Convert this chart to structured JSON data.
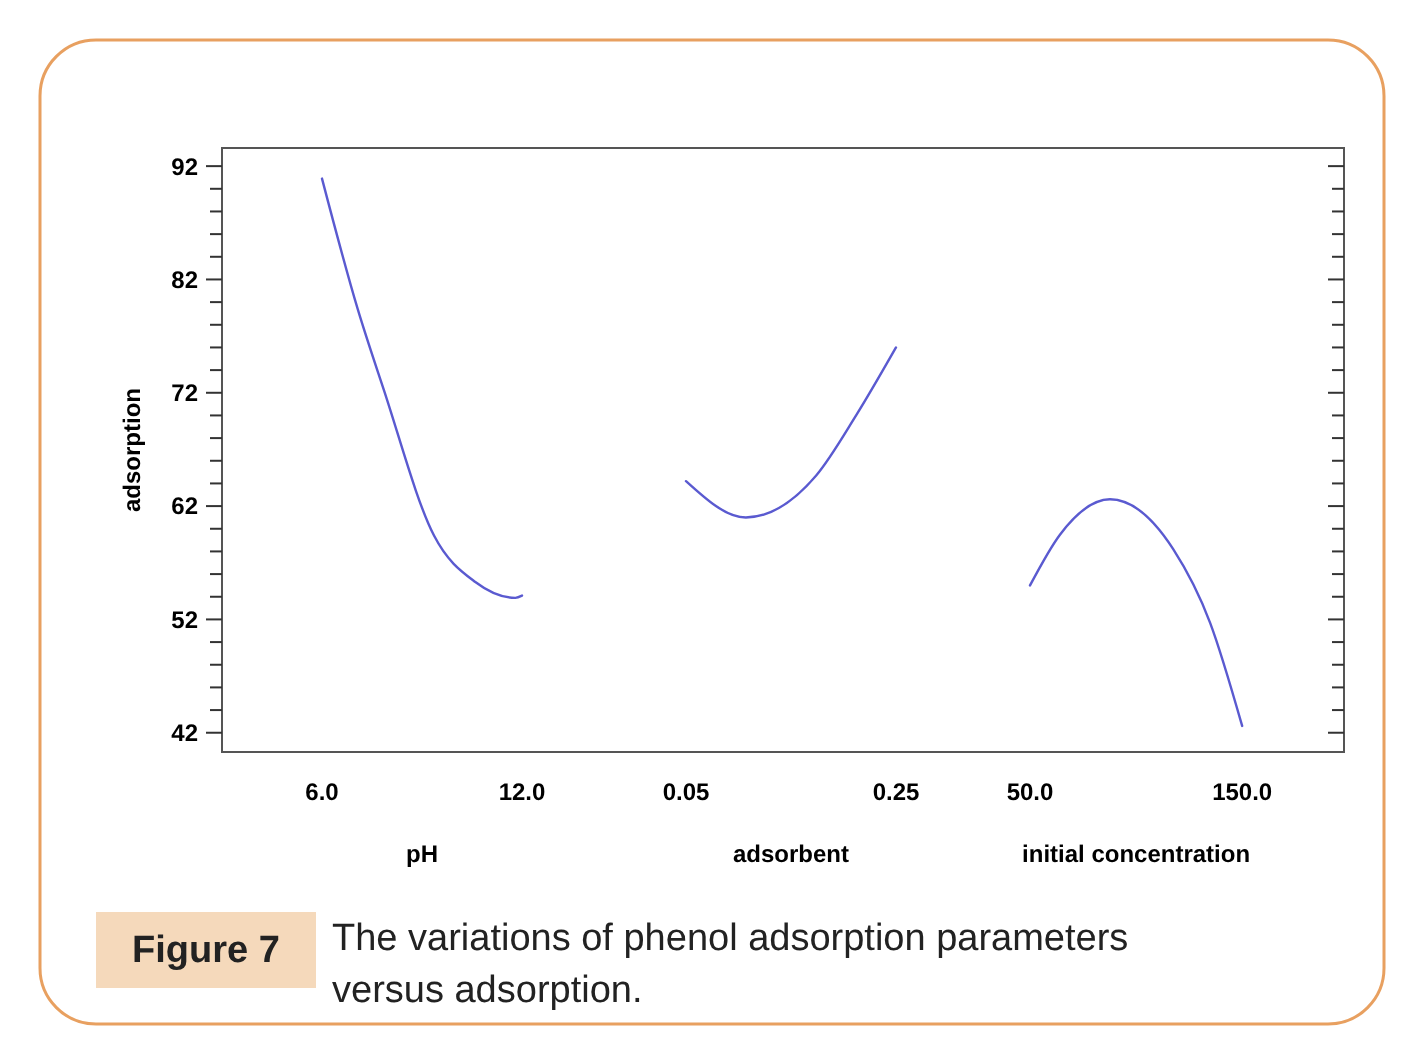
{
  "chart_data": [
    {
      "type": "line",
      "xlabel": "pH",
      "ylabel": "adsorption",
      "x": [
        6,
        7.07,
        7.85,
        9.36,
        10.6,
        11.8,
        12
      ],
      "values": [
        90.9,
        79.4,
        72.3,
        59.4,
        55.3,
        53.9,
        54.1
      ],
      "color": "#5a5ad0",
      "xlim": [
        3.0,
        12
      ],
      "xticks": [
        {
          "value": 6,
          "label": "6.0"
        },
        {
          "value": 12,
          "label": "12.0"
        }
      ],
      "ylim": [
        40.3,
        93.6
      ],
      "yticks": [
        42,
        {
          "value": 44,
          "label": null
        },
        {
          "value": 46,
          "label": null
        },
        {
          "value": 48,
          "label": null
        },
        {
          "value": 50,
          "label": null
        },
        52,
        {
          "value": 54,
          "label": null
        },
        {
          "value": 56,
          "label": null
        },
        {
          "value": 58,
          "label": null
        },
        {
          "value": 60,
          "label": null
        },
        62,
        {
          "value": 64,
          "label": null
        },
        {
          "value": 66,
          "label": null
        },
        {
          "value": 68,
          "label": null
        },
        {
          "value": 70,
          "label": null
        },
        72,
        {
          "value": 74,
          "label": null
        },
        {
          "value": 76,
          "label": null
        },
        {
          "value": 78,
          "label": null
        },
        {
          "value": 80,
          "label": null
        },
        82,
        {
          "value": 84,
          "label": null
        },
        {
          "value": 86,
          "label": null
        },
        {
          "value": 88,
          "label": null
        },
        {
          "value": 90,
          "label": null
        },
        92
      ],
      "annotations": [
        "Figure 7",
        "The variations of phenol adsorption parameters versus adsorption."
      ]
    },
    {
      "type": "line",
      "xlabel": "adsorbent",
      "x": [
        0.05,
        0.107,
        0.174,
        0.212,
        0.25
      ],
      "values": [
        64.2,
        61.0,
        64.7,
        70.0,
        76.0
      ],
      "color": "#5a5ad0",
      "xlim": [
        0.05,
        0.25
      ],
      "xticks": [
        0.05,
        0.25
      ],
      "ylim": [
        40.3,
        93.6
      ],
      "tick_labels": "x"
    },
    {
      "type": "line",
      "xlabel": "initial concentration",
      "x": [
        50,
        64.2,
        87.7,
        117.5,
        134.9,
        150
      ],
      "values": [
        55.0,
        59.5,
        62.6,
        58.2,
        51.7,
        42.6
      ],
      "color": "#5a5ad0",
      "xlim": [
        50,
        198
      ],
      "xticks": [
        {
          "value": 50,
          "label": "50.0"
        },
        {
          "value": 150,
          "label": "150.0"
        }
      ],
      "ylim": [
        40.3,
        93.6
      ],
      "tick_labels": "x"
    }
  ]
}
